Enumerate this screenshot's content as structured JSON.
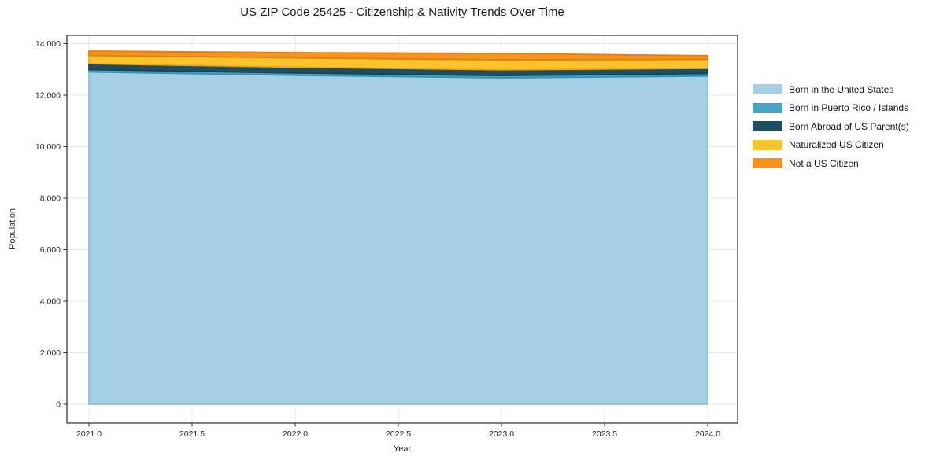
{
  "chart_data": {
    "type": "area",
    "stacked": true,
    "title": "US ZIP Code 25425 - Citizenship & Nativity Trends Over Time",
    "xlabel": "Year",
    "ylabel": "Population",
    "x": [
      2021,
      2022,
      2023,
      2024
    ],
    "series": [
      {
        "name": "Born in the United States",
        "color": "#a5cfe4",
        "edge": "#8abfda",
        "values": [
          12900,
          12770,
          12670,
          12740
        ]
      },
      {
        "name": "Born in Puerto Rico / Islands",
        "color": "#41a5c4",
        "edge": "#3594b3",
        "values": [
          90,
          90,
          90,
          100
        ]
      },
      {
        "name": "Born Abroad of US Parent(s)",
        "color": "#1f4e60",
        "edge": "#1a4252",
        "values": [
          230,
          225,
          225,
          200
        ]
      },
      {
        "name": "Naturalized US Citizen",
        "color": "#fcc32d",
        "edge": "#efa90f",
        "values": [
          320,
          365,
          385,
          350
        ]
      },
      {
        "name": "Not a US Citizen",
        "color": "#f79421",
        "edge": "#e67e0c",
        "values": [
          170,
          200,
          245,
          140
        ]
      }
    ],
    "totals": [
      13710,
      13650,
      13615,
      13530
    ],
    "x_ticks": [
      2021.0,
      2021.5,
      2022.0,
      2022.5,
      2023.0,
      2023.5,
      2024.0
    ],
    "x_tick_labels": [
      "2021.0",
      "2021.5",
      "2022.0",
      "2022.5",
      "2023.0",
      "2023.5",
      "2024.0"
    ],
    "y_ticks": [
      0,
      2000,
      4000,
      6000,
      8000,
      10000,
      12000,
      14000
    ],
    "y_tick_labels": [
      "0",
      "2,000",
      "4,000",
      "6,000",
      "8,000",
      "10,000",
      "12,000",
      "14,000"
    ],
    "xlim": [
      2020.893,
      2024.145
    ],
    "ylim": [
      -733,
      14320
    ],
    "grid": true,
    "legend_position": "right"
  },
  "colors": {
    "background": "#ffffff",
    "grid": "#e8e8e8",
    "spine": "#2b2b2b",
    "tick_text": "#262626",
    "title_text": "#1a1a1a"
  }
}
